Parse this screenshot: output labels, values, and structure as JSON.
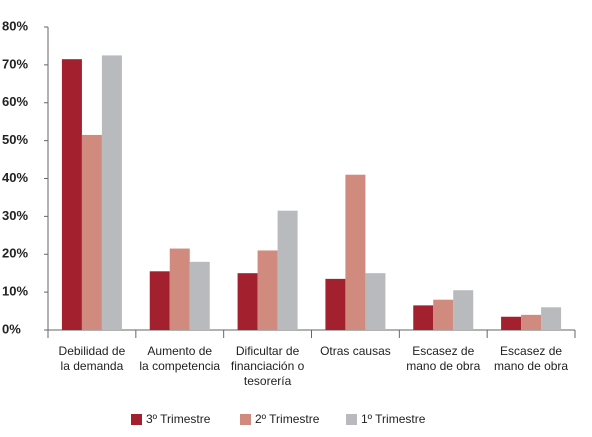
{
  "chart_data": {
    "type": "bar",
    "categories": [
      [
        "Debilidad de",
        "la demanda"
      ],
      [
        "Aumento de",
        "la competencia"
      ],
      [
        "Dificultar de",
        "financiación o",
        "tesorería"
      ],
      [
        "Otras causas"
      ],
      [
        "Escasez de",
        "mano de obra"
      ],
      [
        "Escasez de",
        "mano de obra"
      ]
    ],
    "series": [
      {
        "name": "3º Trimestre",
        "color": "#a3212f",
        "values": [
          71.5,
          15.5,
          15,
          13.5,
          6.5,
          3.5
        ]
      },
      {
        "name": "2º Trimestre",
        "color": "#d08a7e",
        "values": [
          51.5,
          21.5,
          21,
          41,
          8,
          4
        ]
      },
      {
        "name": "1º Trimestre",
        "color": "#b9babe",
        "values": [
          72.5,
          18,
          31.5,
          15,
          10.5,
          6
        ]
      }
    ],
    "ylim": [
      0,
      80
    ],
    "yticks": [
      {
        "value": 0,
        "label": "0%"
      },
      {
        "value": 10,
        "label": "10%"
      },
      {
        "value": 20,
        "label": "20%"
      },
      {
        "value": 30,
        "label": "30%"
      },
      {
        "value": 40,
        "label": "40%"
      },
      {
        "value": 50,
        "label": "50%"
      },
      {
        "value": 60,
        "label": "60%"
      },
      {
        "value": 70,
        "label": "70%"
      },
      {
        "value": 80,
        "label": "80%"
      }
    ],
    "grid": false
  }
}
